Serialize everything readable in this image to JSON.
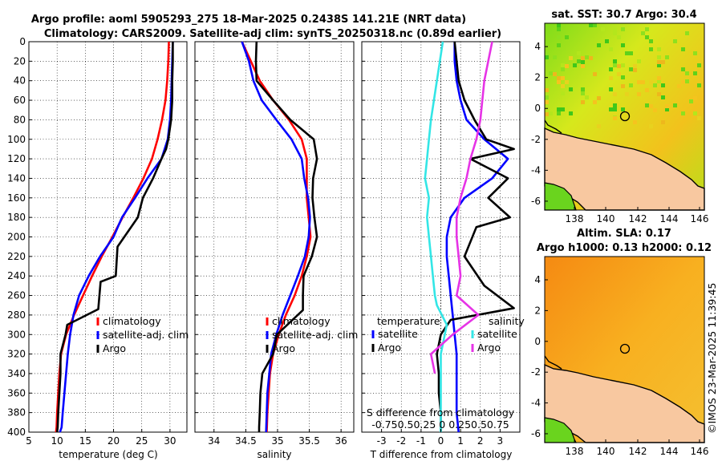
{
  "title_line1": "Argo profile: aoml 5905293_275 18-Mar-2025 0.2438S 141.21E (NRT data)",
  "title_line2": "Climatology: CARS2009. Satellite-adj clim: synTS_20250318.nc (0.89d earlier)",
  "map_sst_title": "sat. SST: 30.7 Argo: 30.4",
  "map_sla_title1": "Altim. SLA: 0.17",
  "map_sla_title2": "Argo h1000: 0.13 h2000: 0.12",
  "watermark": "©IMOS 23-Mar-2025 11:39:45",
  "legend_profiles": [
    "climatology",
    "satellite-adj. clim",
    "Argo"
  ],
  "legend_diff_temp_header": "temperature",
  "legend_diff_sal_header": "salinity",
  "legend_diff_temp": [
    "satellite",
    "Argo"
  ],
  "legend_diff_sal": [
    "satellite",
    "Argo"
  ],
  "diff_annot_title": "S difference from climatology",
  "diff_annot_ticks": "-0.750.50.25 0  0.250.50.75",
  "colors": {
    "climatology": "#ff0000",
    "satellite": "#0000ff",
    "argo": "#000000",
    "sal_sat": "#33e6e6",
    "sal_argo": "#e633e6"
  },
  "chart_data": [
    {
      "type": "line",
      "id": "temp",
      "xlabel": "temperature (deg C)",
      "ylabel": "",
      "xlim": [
        5,
        33
      ],
      "ylim": [
        400,
        0
      ],
      "xticks": [
        5,
        10,
        15,
        20,
        25,
        30
      ],
      "xticklabels": [
        "5",
        "10",
        "15",
        "20",
        "25",
        "30"
      ],
      "yticks": [
        0,
        20,
        40,
        60,
        80,
        100,
        120,
        140,
        160,
        180,
        200,
        220,
        240,
        260,
        280,
        300,
        320,
        340,
        360,
        380,
        400
      ],
      "yticklabels": [
        "0",
        "20",
        "40",
        "60",
        "80",
        "100",
        "120",
        "140",
        "160",
        "180",
        "200",
        "220",
        "240",
        "260",
        "280",
        "300",
        "320",
        "340",
        "360",
        "380",
        "400"
      ],
      "series": [
        {
          "name": "climatology",
          "color": "#ff0000",
          "x": [
            29.8,
            29.7,
            29.5,
            29.2,
            28.6,
            27.8,
            26.8,
            25.3,
            23.5,
            21.6,
            19.8,
            17.9,
            16.2,
            14.6,
            13.0,
            11.6,
            10.7,
            10.4,
            10.2,
            10.0,
            9.9,
            9.8
          ],
          "y": [
            0,
            20,
            40,
            60,
            80,
            100,
            120,
            140,
            160,
            180,
            200,
            220,
            240,
            260,
            280,
            300,
            320,
            340,
            360,
            380,
            395,
            400
          ]
        },
        {
          "name": "satellite-adj. clim",
          "color": "#0000ff",
          "x": [
            30.5,
            30.4,
            30.3,
            30.2,
            30.0,
            29.6,
            28.5,
            26.0,
            23.8,
            21.5,
            20.0,
            17.6,
            15.6,
            13.9,
            12.9,
            12.3,
            11.9,
            11.6,
            11.3,
            11.0,
            10.8,
            10.5
          ],
          "y": [
            0,
            20,
            40,
            60,
            80,
            100,
            120,
            140,
            160,
            180,
            200,
            220,
            240,
            260,
            280,
            300,
            320,
            340,
            360,
            380,
            395,
            400
          ]
        },
        {
          "name": "Argo",
          "color": "#000000",
          "x": [
            30.5,
            30.5,
            30.4,
            30.4,
            30.2,
            29.7,
            29.3,
            28.5,
            27.0,
            25.2,
            24.3,
            20.7,
            20.4,
            17.7,
            17.3,
            11.8,
            11.5,
            10.6,
            10.6,
            10.4,
            10.2,
            10.1,
            10.0
          ],
          "y": [
            0,
            20,
            40,
            60,
            80,
            100,
            110,
            120,
            140,
            160,
            180,
            210,
            240,
            246,
            274,
            290,
            300,
            320,
            340,
            360,
            380,
            395,
            400
          ]
        }
      ]
    },
    {
      "type": "line",
      "id": "sal",
      "xlabel": "salinity",
      "ylabel": "",
      "xlim": [
        33.7,
        36.2
      ],
      "ylim": [
        400,
        0
      ],
      "xticks": [
        34,
        34.5,
        35,
        35.5,
        36
      ],
      "xticklabels": [
        "34",
        "34.5",
        "35",
        "35.5",
        "36"
      ],
      "series": [
        {
          "name": "climatology",
          "color": "#ff0000",
          "x": [
            34.44,
            34.58,
            34.72,
            34.93,
            35.18,
            35.38,
            35.46,
            35.46,
            35.46,
            35.49,
            35.52,
            35.46,
            35.38,
            35.27,
            35.13,
            35.02,
            34.93,
            34.88,
            34.86,
            34.84,
            34.83
          ],
          "y": [
            0,
            20,
            40,
            60,
            80,
            100,
            120,
            140,
            160,
            180,
            200,
            220,
            240,
            260,
            280,
            300,
            320,
            340,
            360,
            380,
            400
          ]
        },
        {
          "name": "satellite-adj. clim",
          "color": "#0000ff",
          "x": [
            34.44,
            34.55,
            34.62,
            34.75,
            34.98,
            35.22,
            35.38,
            35.42,
            35.48,
            35.51,
            35.49,
            35.43,
            35.32,
            35.2,
            35.08,
            34.98,
            34.9,
            34.87,
            34.84,
            34.83,
            34.82
          ],
          "y": [
            0,
            20,
            40,
            60,
            80,
            100,
            120,
            140,
            160,
            180,
            200,
            220,
            240,
            260,
            280,
            300,
            320,
            340,
            360,
            380,
            400
          ]
        },
        {
          "name": "Argo",
          "color": "#000000",
          "x": [
            34.67,
            34.66,
            34.67,
            34.93,
            35.2,
            35.57,
            35.62,
            35.56,
            35.55,
            35.58,
            35.62,
            35.54,
            35.41,
            35.4,
            35.4,
            34.99,
            34.93,
            34.76,
            34.73,
            34.72,
            34.71,
            34.71
          ],
          "y": [
            0,
            20,
            40,
            60,
            80,
            100,
            120,
            140,
            160,
            180,
            200,
            220,
            240,
            260,
            275,
            300,
            320,
            340,
            360,
            380,
            395,
            400
          ]
        }
      ]
    },
    {
      "type": "line",
      "id": "diff",
      "xlabel": "T difference from climatology",
      "ylabel": "",
      "xlim": [
        -4,
        4
      ],
      "ylim": [
        400,
        0
      ],
      "xticks": [
        -3,
        -2,
        -1,
        0,
        1,
        2,
        3
      ],
      "xticklabels": [
        "-3",
        "-2",
        "-1",
        "0",
        "1",
        "2",
        "3"
      ],
      "series": [
        {
          "name": "temperature satellite",
          "color": "#0000ff",
          "x": [
            0.7,
            0.7,
            0.8,
            1.0,
            1.3,
            2.2,
            3.4,
            2.6,
            1.2,
            0.5,
            0.3,
            0.3,
            0.4,
            0.5,
            0.6,
            0.7,
            0.8,
            0.8,
            0.8,
            0.8,
            0.9
          ],
          "y": [
            0,
            20,
            40,
            60,
            80,
            100,
            120,
            140,
            160,
            180,
            200,
            220,
            240,
            260,
            280,
            300,
            320,
            340,
            360,
            380,
            400
          ]
        },
        {
          "name": "temperature Argo",
          "color": "#000000",
          "x": [
            0.7,
            0.8,
            0.9,
            1.2,
            1.7,
            2.3,
            3.7,
            1.5,
            3.4,
            2.4,
            3.5,
            1.8,
            1.2,
            2.2,
            3.7,
            0.5,
            0.0,
            -0.2,
            -0.1,
            -0.1,
            0.0,
            0.0
          ],
          "y": [
            0,
            20,
            40,
            60,
            80,
            100,
            110,
            120,
            140,
            160,
            180,
            190,
            220,
            250,
            273,
            285,
            300,
            320,
            340,
            360,
            380,
            400
          ]
        },
        {
          "name": "salinity satellite",
          "color": "#33e6e6",
          "x": [
            0.1,
            -0.2,
            -0.5,
            -0.6,
            -0.7,
            -0.8,
            -0.6,
            -0.7,
            -0.6,
            -0.5,
            -0.4,
            -0.3,
            -0.2,
            0.3,
            0.0,
            0.0,
            0.0,
            0.0
          ],
          "y": [
            0,
            40,
            80,
            100,
            120,
            140,
            160,
            180,
            200,
            220,
            240,
            260,
            270,
            290,
            320,
            350,
            380,
            400
          ]
        },
        {
          "name": "salinity Argo",
          "color": "#e633e6",
          "x": [
            2.6,
            2.2,
            2.0,
            1.8,
            1.5,
            1.3,
            1.0,
            0.8,
            0.8,
            0.9,
            1.0,
            0.8,
            1.9,
            0.6,
            -0.5,
            -0.3
          ],
          "y": [
            0,
            40,
            80,
            100,
            120,
            140,
            160,
            180,
            200,
            220,
            240,
            260,
            280,
            300,
            320,
            340
          ]
        }
      ]
    }
  ],
  "maps": {
    "sst": {
      "xticks": [
        "138",
        "140",
        "142",
        "144",
        "146"
      ],
      "yticks": [
        "4",
        "2",
        "0",
        "-2",
        "-4",
        "-6"
      ]
    },
    "sla": {
      "xticks": [
        "138",
        "140",
        "142",
        "144",
        "146"
      ],
      "yticks": [
        "4",
        "2",
        "0",
        "-2",
        "-4",
        "-6"
      ]
    }
  }
}
